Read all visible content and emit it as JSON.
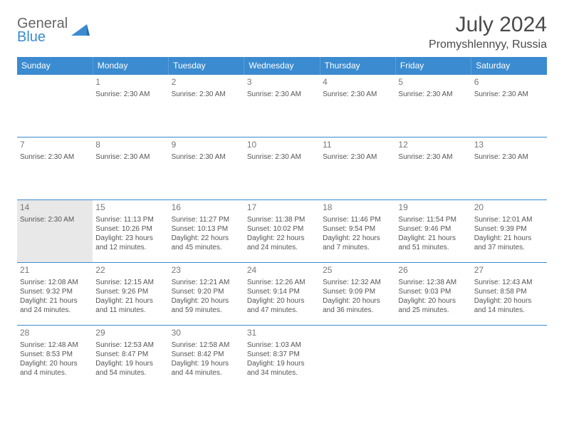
{
  "brand": {
    "word1": "General",
    "word2": "Blue"
  },
  "header": {
    "month_title": "July 2024",
    "location": "Promyshlennyy, Russia"
  },
  "colors": {
    "header_bg": "#3a8bd0",
    "header_text": "#ffffff",
    "cell_border": "#3a8bd0",
    "today_bg": "#e8e8e8",
    "text": "#555555",
    "daynum": "#777777"
  },
  "day_headers": [
    "Sunday",
    "Monday",
    "Tuesday",
    "Wednesday",
    "Thursday",
    "Friday",
    "Saturday"
  ],
  "weeks": [
    [
      {
        "n": "",
        "lines": []
      },
      {
        "n": "1",
        "lines": [
          "Sunrise: 2:30 AM"
        ]
      },
      {
        "n": "2",
        "lines": [
          "Sunrise: 2:30 AM"
        ]
      },
      {
        "n": "3",
        "lines": [
          "Sunrise: 2:30 AM"
        ]
      },
      {
        "n": "4",
        "lines": [
          "Sunrise: 2:30 AM"
        ]
      },
      {
        "n": "5",
        "lines": [
          "Sunrise: 2:30 AM"
        ]
      },
      {
        "n": "6",
        "lines": [
          "Sunrise: 2:30 AM"
        ]
      }
    ],
    [
      {
        "n": "7",
        "lines": [
          "Sunrise: 2:30 AM"
        ]
      },
      {
        "n": "8",
        "lines": [
          "Sunrise: 2:30 AM"
        ]
      },
      {
        "n": "9",
        "lines": [
          "Sunrise: 2:30 AM"
        ]
      },
      {
        "n": "10",
        "lines": [
          "Sunrise: 2:30 AM"
        ]
      },
      {
        "n": "11",
        "lines": [
          "Sunrise: 2:30 AM"
        ]
      },
      {
        "n": "12",
        "lines": [
          "Sunrise: 2:30 AM"
        ]
      },
      {
        "n": "13",
        "lines": [
          "Sunrise: 2:30 AM"
        ]
      }
    ],
    [
      {
        "n": "14",
        "today": true,
        "lines": [
          "Sunrise: 2:30 AM"
        ]
      },
      {
        "n": "15",
        "lines": [
          "Sunrise: 11:13 PM",
          "Sunset: 10:26 PM",
          "Daylight: 23 hours",
          "and 12 minutes."
        ]
      },
      {
        "n": "16",
        "lines": [
          "Sunrise: 11:27 PM",
          "Sunset: 10:13 PM",
          "Daylight: 22 hours",
          "and 45 minutes."
        ]
      },
      {
        "n": "17",
        "lines": [
          "Sunrise: 11:38 PM",
          "Sunset: 10:02 PM",
          "Daylight: 22 hours",
          "and 24 minutes."
        ]
      },
      {
        "n": "18",
        "lines": [
          "Sunrise: 11:46 PM",
          "Sunset: 9:54 PM",
          "Daylight: 22 hours",
          "and 7 minutes."
        ]
      },
      {
        "n": "19",
        "lines": [
          "Sunrise: 11:54 PM",
          "Sunset: 9:46 PM",
          "Daylight: 21 hours",
          "and 51 minutes."
        ]
      },
      {
        "n": "20",
        "lines": [
          "Sunrise: 12:01 AM",
          "Sunset: 9:39 PM",
          "Daylight: 21 hours",
          "and 37 minutes."
        ]
      }
    ],
    [
      {
        "n": "21",
        "lines": [
          "Sunrise: 12:08 AM",
          "Sunset: 9:32 PM",
          "Daylight: 21 hours",
          "and 24 minutes."
        ]
      },
      {
        "n": "22",
        "lines": [
          "Sunrise: 12:15 AM",
          "Sunset: 9:26 PM",
          "Daylight: 21 hours",
          "and 11 minutes."
        ]
      },
      {
        "n": "23",
        "lines": [
          "Sunrise: 12:21 AM",
          "Sunset: 9:20 PM",
          "Daylight: 20 hours",
          "and 59 minutes."
        ]
      },
      {
        "n": "24",
        "lines": [
          "Sunrise: 12:26 AM",
          "Sunset: 9:14 PM",
          "Daylight: 20 hours",
          "and 47 minutes."
        ]
      },
      {
        "n": "25",
        "lines": [
          "Sunrise: 12:32 AM",
          "Sunset: 9:09 PM",
          "Daylight: 20 hours",
          "and 36 minutes."
        ]
      },
      {
        "n": "26",
        "lines": [
          "Sunrise: 12:38 AM",
          "Sunset: 9:03 PM",
          "Daylight: 20 hours",
          "and 25 minutes."
        ]
      },
      {
        "n": "27",
        "lines": [
          "Sunrise: 12:43 AM",
          "Sunset: 8:58 PM",
          "Daylight: 20 hours",
          "and 14 minutes."
        ]
      }
    ],
    [
      {
        "n": "28",
        "lines": [
          "Sunrise: 12:48 AM",
          "Sunset: 8:53 PM",
          "Daylight: 20 hours",
          "and 4 minutes."
        ]
      },
      {
        "n": "29",
        "lines": [
          "Sunrise: 12:53 AM",
          "Sunset: 8:47 PM",
          "Daylight: 19 hours",
          "and 54 minutes."
        ]
      },
      {
        "n": "30",
        "lines": [
          "Sunrise: 12:58 AM",
          "Sunset: 8:42 PM",
          "Daylight: 19 hours",
          "and 44 minutes."
        ]
      },
      {
        "n": "31",
        "lines": [
          "Sunrise: 1:03 AM",
          "Sunset: 8:37 PM",
          "Daylight: 19 hours",
          "and 34 minutes."
        ]
      },
      {
        "n": "",
        "lines": []
      },
      {
        "n": "",
        "lines": []
      },
      {
        "n": "",
        "lines": []
      }
    ]
  ]
}
